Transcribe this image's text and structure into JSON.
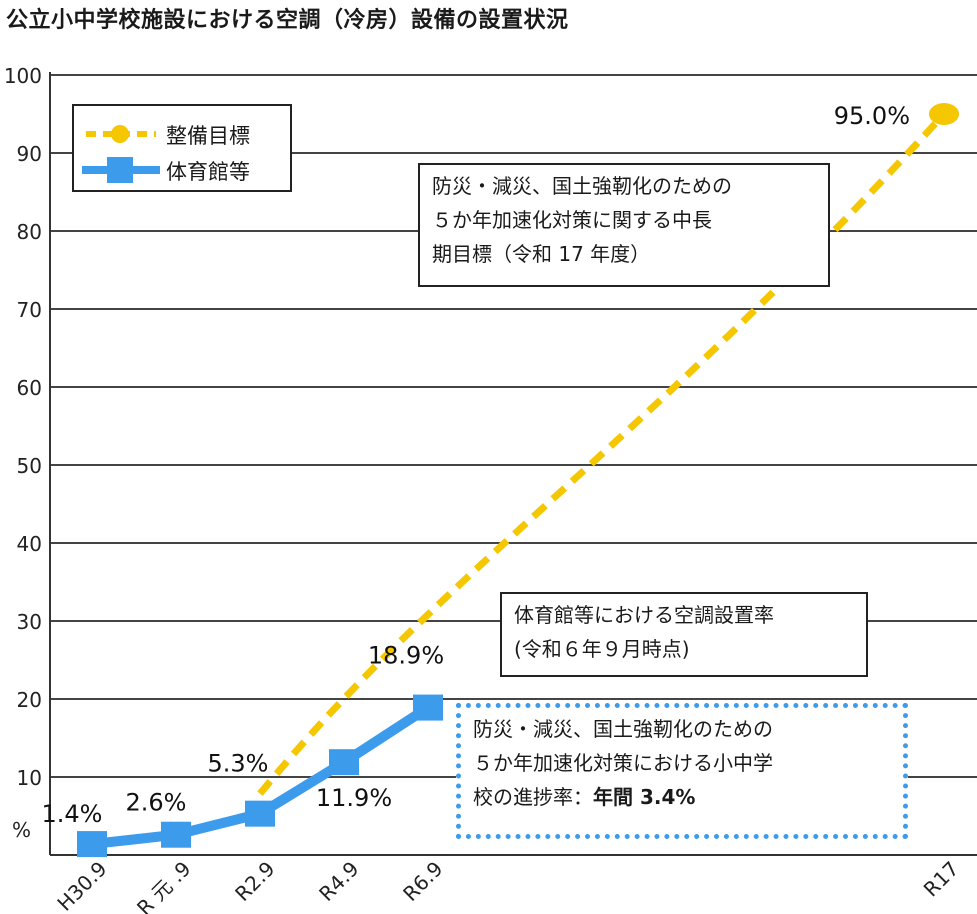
{
  "title": "公立小中学校施設における空調（冷房）設備の設置状況",
  "legend": {
    "target_label": "整備目標",
    "gym_label": "体育館等"
  },
  "annotations": {
    "target_note": [
      "防災・減災、国土強靭化のための",
      "５か年加速化対策に関する中長",
      "期目標（令和 17 年度）"
    ],
    "rate_note": [
      "体育館等における空調設置率",
      "(令和６年９月時点)"
    ],
    "progress_note": [
      "防災・減災、国土強靭化のための",
      "５か年加速化対策における小中学",
      "校の進捗率："
    ],
    "progress_bold": "年間 3.4%"
  },
  "colors": {
    "target": "#f5c700",
    "gym": "#3d9bec",
    "axis": "#333333",
    "grid": "#444444"
  },
  "chart_data": {
    "type": "line",
    "categories": [
      "H30.9",
      "R 元 .9",
      "R2.9",
      "R4.9",
      "R6.9",
      "R17"
    ],
    "ylim": [
      0,
      100
    ],
    "yticks": [
      10,
      20,
      30,
      40,
      50,
      60,
      70,
      80,
      90,
      100
    ],
    "ylabel": "%",
    "grid": true,
    "series": [
      {
        "name": "体育館等",
        "points": [
          [
            "H30.9",
            1.4
          ],
          [
            "R 元 .9",
            2.6
          ],
          [
            "R2.9",
            5.3
          ],
          [
            "R4.9",
            11.9
          ],
          [
            "R6.9",
            18.9
          ]
        ],
        "labels": [
          "1.4%",
          "2.6%",
          "5.3%",
          "11.9%",
          "18.9%"
        ]
      },
      {
        "name": "整備目標",
        "points": [
          [
            "R2.9",
            5.3
          ],
          [
            "R17",
            95.0
          ]
        ],
        "labels": [
          "",
          "95.0%"
        ]
      }
    ]
  }
}
